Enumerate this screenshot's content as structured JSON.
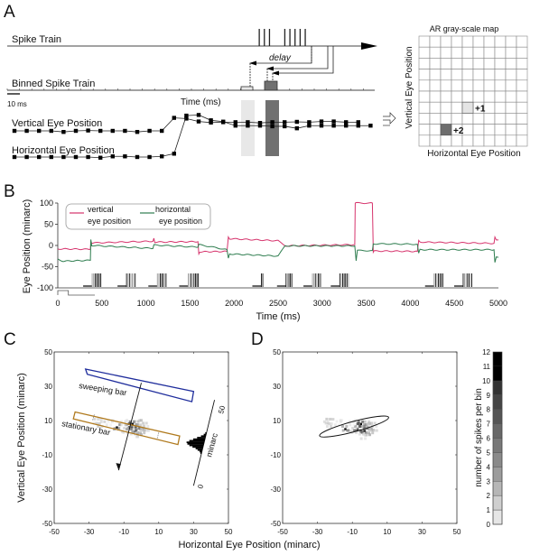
{
  "panels": {
    "a": {
      "label": "A",
      "spike_train_label": "Spike Train",
      "binned_label": "Binned Spike Train",
      "scale_label": "10 ms",
      "time_label": "Time (ms)",
      "delay_label": "delay",
      "vertical_label": "Vertical Eye Position",
      "horizontal_label": "Horizontal Eye Position",
      "spike_times": [
        0.74,
        0.755,
        0.77,
        0.815,
        0.83,
        0.845,
        0.86,
        0.875
      ],
      "bins": [
        {
          "name": "light-bin",
          "count": 1,
          "color": "#e8e8e8"
        },
        {
          "name": "dark-bin",
          "count": 2,
          "color": "#707070"
        }
      ],
      "vertical_series": [
        0,
        0,
        0,
        0,
        -0.3,
        0,
        0.1,
        0,
        0,
        0,
        -0.3,
        0,
        0,
        3.6,
        3.4,
        2.6,
        2.3,
        2.4,
        2.4,
        2.4,
        2.2,
        2.4,
        2.4,
        2.5,
        2.4,
        2.6,
        2.6,
        2.4,
        2.4
      ],
      "horizontal_series": [
        0,
        0,
        0,
        0,
        0,
        0,
        0,
        -0.1,
        0.1,
        0.1,
        0,
        0,
        0.1,
        0.5,
        6.2,
        6.3,
        5.5,
        5.3,
        4.7,
        4.7,
        4.7,
        4.6,
        4.6,
        4.3,
        4.7,
        4.7,
        4.7,
        4.7,
        4.7,
        4.7
      ],
      "map": {
        "title": "AR gray-scale map",
        "xlabel": "Horizontal Eye Position",
        "ylabel": "Vertical Eye Position",
        "rows": 10,
        "cols": 10,
        "cells": [
          {
            "row": 6,
            "col": 4,
            "label": "+1",
            "color": "#e4e4e4"
          },
          {
            "row": 8,
            "col": 2,
            "label": "+2",
            "color": "#6e6e6e"
          }
        ]
      }
    },
    "b": {
      "label": "B",
      "legend": [
        {
          "name": "vertical",
          "line1": "vertical",
          "line2": "eye position",
          "color": "#d6336c"
        },
        {
          "name": "horizontal",
          "line1": "horizontal",
          "line2": "eye position",
          "color": "#2e7d4f"
        }
      ]
    },
    "c": {
      "label": "C",
      "sweeping_label": "sweeping bar",
      "stationary_label": "stationary bar",
      "minarc_label": "minarc",
      "scale_zero": "0",
      "scale_fifty": "50",
      "sweeping_color": "#1f2d9c",
      "stationary_color": "#b07a1e"
    },
    "d": {
      "label": "D",
      "colorbar_label": "number of spikes per bin"
    },
    "shared_xlabel": "Horizontal Eye Position (minarc)"
  },
  "chart_data": [
    {
      "type": "line",
      "panel": "B",
      "title": "",
      "xlabel": "Time (ms)",
      "ylabel": "Eye Position (minarc)",
      "xlim": [
        0,
        5000
      ],
      "ylim": [
        -100,
        100
      ],
      "xticks": [
        "0",
        "500",
        "1000",
        "1500",
        "2000",
        "2500",
        "3000",
        "3500",
        "4000",
        "4500",
        "5000"
      ],
      "yticks": [
        "100",
        "50",
        "0",
        "-50",
        "-100"
      ],
      "legend_position": "top-left",
      "series": [
        {
          "name": "vertical eye position",
          "color": "#d6336c",
          "x": [
            0,
            370,
            375,
            385,
            1080,
            1090,
            1100,
            1590,
            1600,
            1610,
            1920,
            1935,
            1950,
            2500,
            2580,
            3370,
            3375,
            3385,
            3570,
            3580,
            3590,
            4080,
            4095,
            4110,
            4950,
            4960,
            4975,
            5000
          ],
          "y": [
            -8,
            -9,
            10,
            6,
            10,
            17,
            8,
            9,
            -20,
            -15,
            -14,
            20,
            16,
            11,
            -1,
            2,
            100,
            100,
            100,
            -16,
            -13,
            -14,
            12,
            8,
            5,
            20,
            13,
            13
          ]
        },
        {
          "name": "horizontal eye position",
          "color": "#2e7d4f",
          "x": [
            0,
            60,
            370,
            375,
            385,
            1080,
            1090,
            1590,
            1600,
            1920,
            1935,
            1950,
            2500,
            2580,
            3370,
            3385,
            3400,
            3570,
            3580,
            4080,
            4095,
            4110,
            4950,
            4960,
            4975,
            5000
          ],
          "y": [
            -33,
            -37,
            -35,
            14,
            0,
            -7,
            1,
            -4,
            2,
            -10,
            -30,
            -20,
            -25,
            -1,
            -1,
            -36,
            -12,
            -12,
            4,
            3,
            -18,
            -10,
            -10,
            -40,
            -27,
            -28
          ]
        }
      ],
      "spike_bursts_ms": [
        [
          390,
          500
        ],
        [
          780,
          880
        ],
        [
          1130,
          1240
        ],
        [
          1480,
          1600
        ],
        [
          2310,
          2340
        ],
        [
          2590,
          2660
        ],
        [
          2890,
          2990
        ],
        [
          3200,
          3310
        ],
        [
          4270,
          4370
        ],
        [
          4600,
          4700
        ]
      ],
      "stimulus_step": {
        "on": [
          0,
          120
        ],
        "off": [
          120,
          420
        ]
      }
    },
    {
      "type": "heatmap",
      "panel": "C",
      "xlabel": "Horizontal Eye Position (minarc)",
      "ylabel": "Vertical Eye Position (minarc)",
      "xlim": [
        -50,
        50
      ],
      "ylim": [
        -50,
        50
      ],
      "xticks": [
        "-50",
        "-30",
        "-10",
        "10",
        "30",
        "50"
      ],
      "yticks": [
        "50",
        "30",
        "10",
        "-10",
        "-30",
        "-50"
      ],
      "sweeping_bar": {
        "corners": [
          [
            -32,
            40
          ],
          [
            -31,
            37
          ],
          [
            29,
            21
          ],
          [
            30,
            27
          ]
        ]
      },
      "stationary_bar": {
        "corners": [
          [
            -38,
            15
          ],
          [
            -39,
            11
          ],
          [
            21,
            -4
          ],
          [
            22,
            1
          ]
        ]
      },
      "sweep_arrow": {
        "from": [
          0,
          32
        ],
        "to": [
          -13,
          -19
        ]
      },
      "histogram_axis": {
        "from": [
          30,
          -28
        ],
        "to": [
          42,
          22
        ],
        "range_minarc": [
          0,
          50
        ]
      },
      "spikes": [
        {
          "x": -23,
          "y": 8,
          "n": 3
        },
        {
          "x": -25,
          "y": 10,
          "n": 2
        },
        {
          "x": -14,
          "y": 6,
          "n": 6
        },
        {
          "x": -7,
          "y": 6,
          "n": 8
        },
        {
          "x": -5,
          "y": 8,
          "n": 11
        },
        {
          "x": -3,
          "y": 4,
          "n": 9
        },
        {
          "x": -1,
          "y": 6,
          "n": 7
        },
        {
          "x": -2,
          "y": 9,
          "n": 4
        },
        {
          "x": 0,
          "y": 3,
          "n": 5
        },
        {
          "x": 1,
          "y": 7,
          "n": 3
        },
        {
          "x": -9,
          "y": 4,
          "n": 2
        },
        {
          "x": -10,
          "y": 9,
          "n": 1
        },
        {
          "x": -18,
          "y": 9,
          "n": 1
        },
        {
          "x": -4,
          "y": 2,
          "n": 2
        },
        {
          "x": 2,
          "y": 5,
          "n": 2
        }
      ]
    },
    {
      "type": "heatmap",
      "panel": "D",
      "xlabel": "Horizontal Eye Position (minarc)",
      "ylabel": "",
      "xlim": [
        -50,
        50
      ],
      "ylim": [
        -50,
        50
      ],
      "xticks": [
        "-50",
        "-30",
        "-10",
        "10",
        "30",
        "50"
      ],
      "yticks": [
        "50",
        "30",
        "10",
        "-10",
        "-30",
        "-50"
      ],
      "ellipse": {
        "center": [
          -9,
          6.5
        ],
        "rx_minarc": 20.5,
        "ry_minarc": 3,
        "angle_deg": -15
      },
      "spikes": [
        {
          "x": -23,
          "y": 10,
          "n": 3
        },
        {
          "x": -24,
          "y": 8,
          "n": 2
        },
        {
          "x": -14,
          "y": 5,
          "n": 6
        },
        {
          "x": -7,
          "y": 5,
          "n": 8
        },
        {
          "x": -5,
          "y": 8,
          "n": 11
        },
        {
          "x": -3,
          "y": 4,
          "n": 9
        },
        {
          "x": -1,
          "y": 6,
          "n": 7
        },
        {
          "x": -2,
          "y": 8,
          "n": 4
        },
        {
          "x": 0,
          "y": 3,
          "n": 5
        },
        {
          "x": 1,
          "y": 7,
          "n": 3
        },
        {
          "x": -9,
          "y": 4,
          "n": 2
        },
        {
          "x": -10,
          "y": 9,
          "n": 1
        },
        {
          "x": -18,
          "y": 9,
          "n": 1
        },
        {
          "x": -4,
          "y": 1,
          "n": 2
        },
        {
          "x": 2,
          "y": 5,
          "n": 2
        }
      ],
      "colorbar": {
        "label": "number of spikes per bin",
        "min": 0,
        "max": 12,
        "ticks": [
          "0",
          "1",
          "2",
          "3",
          "4",
          "5",
          "6",
          "7",
          "8",
          "9",
          "10",
          "11",
          "12"
        ]
      }
    }
  ]
}
